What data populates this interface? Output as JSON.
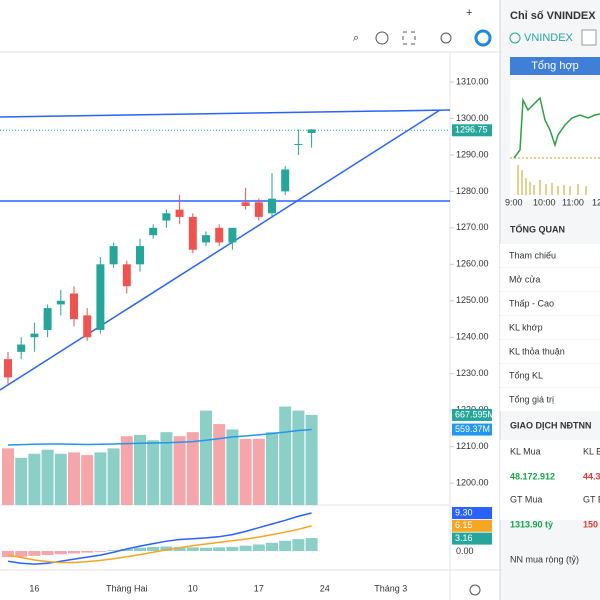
{
  "chart_data": {
    "type": "candlestick",
    "open": [
      1234,
      1236,
      1240,
      1242,
      1249,
      1252,
      1246,
      1242,
      1260,
      1260,
      1260,
      1268,
      1272,
      1275,
      1273,
      1266,
      1270,
      1266,
      1277,
      1277,
      1274,
      1280,
      1293,
      1296
    ],
    "close": [
      1229,
      1238,
      1241,
      1248,
      1250,
      1245,
      1240,
      1260,
      1265,
      1254,
      1265,
      1270,
      1274,
      1273,
      1264,
      1268,
      1266,
      1270,
      1276,
      1273,
      1278,
      1286,
      1293,
      1297
    ],
    "high": [
      1236,
      1240,
      1244,
      1249,
      1253,
      1254,
      1248,
      1262,
      1266,
      1261,
      1267,
      1271,
      1275,
      1279,
      1274,
      1269,
      1271,
      1270,
      1281,
      1278,
      1285,
      1287,
      1297,
      1297
    ],
    "low": [
      1227,
      1234,
      1236,
      1240,
      1246,
      1243,
      1239,
      1241,
      1259,
      1252,
      1258,
      1267,
      1270,
      1271,
      1263,
      1265,
      1265,
      1264,
      1275,
      1272,
      1273,
      1279,
      1290,
      1292
    ],
    "ylim": [
      1194,
      1317.4
    ],
    "yticks": [
      {
        "value": 1310,
        "label": "1310.00"
      },
      {
        "value": 1300,
        "label": "1300.00"
      },
      {
        "value": 1290,
        "label": "1290.00"
      },
      {
        "value": 1280,
        "label": "1280.00"
      },
      {
        "value": 1270,
        "label": "1270.00"
      },
      {
        "value": 1260,
        "label": "1260.00"
      },
      {
        "value": 1250,
        "label": "1250.00"
      },
      {
        "value": 1240,
        "label": "1240.00"
      },
      {
        "value": 1230,
        "label": "1230.00"
      },
      {
        "value": 1220,
        "label": "1220.00"
      },
      {
        "value": 1210,
        "label": "1210.00"
      },
      {
        "value": 1200,
        "label": "1200.00"
      }
    ],
    "last_price": 1296.75,
    "xticks": [
      {
        "value": 2,
        "label": "16"
      },
      {
        "value": 9,
        "label": "Tháng Hai"
      },
      {
        "value": 14,
        "label": "10"
      },
      {
        "value": 19,
        "label": "17"
      },
      {
        "value": 24,
        "label": "24"
      },
      {
        "value": 29,
        "label": "Tháng 3"
      }
    ],
    "up_color": "#26a69a",
    "down_color": "#ef5350",
    "volume": {
      "values": [
        420,
        350,
        380,
        410,
        380,
        390,
        370,
        390,
        420,
        510,
        520,
        480,
        540,
        510,
        540,
        700,
        600,
        560,
        490,
        490,
        540,
        730,
        700,
        667.595
      ],
      "ma": [
        445,
        448,
        450,
        452,
        452,
        450,
        449,
        450,
        452,
        455,
        458,
        460,
        462,
        465,
        470,
        480,
        492,
        505,
        512,
        520,
        530,
        540,
        552,
        559.37
      ],
      "ylim": [
        0,
        1001
      ],
      "last_label": "667.595M",
      "ma_label": "559.37M",
      "up_color": "#8ccfc7",
      "down_color": "#f4a6aa",
      "ma_color": "#2196f3"
    },
    "macd": {
      "histogram": [
        -1.5,
        -1.4,
        -1.2,
        -1,
        -0.8,
        -0.6,
        -0.4,
        -0.2,
        0.2,
        0.5,
        0.8,
        1,
        1.1,
        1,
        0.9,
        0.8,
        0.9,
        1,
        1.3,
        1.6,
        2,
        2.5,
        2.9,
        3.16
      ],
      "macd": [
        -2.5,
        -3,
        -3.2,
        -3,
        -2.5,
        -2,
        -1.5,
        -1,
        -0.3,
        0.5,
        1.2,
        1.8,
        2.4,
        2.8,
        3,
        3.2,
        3.5,
        4,
        4.8,
        5.7,
        6.6,
        7.5,
        8.5,
        9.3
      ],
      "signal": [
        -1,
        -1.6,
        -2.2,
        -2.6,
        -2.8,
        -2.8,
        -2.6,
        -2.3,
        -1.9,
        -1.4,
        -0.9,
        -0.3,
        0.3,
        0.8,
        1.3,
        1.7,
        2.1,
        2.5,
        2.9,
        3.4,
        4,
        4.6,
        5.3,
        6.15
      ],
      "ylim": [
        -4.16,
        10.76
      ],
      "labels": [
        {
          "value": 9.3,
          "label": "9.30"
        },
        {
          "value": 6.15,
          "label": "6.15"
        },
        {
          "value": 3.16,
          "label": "3.16"
        },
        {
          "value": 0,
          "label": "0.00"
        }
      ],
      "macd_color": "#2962ff",
      "signal_color": "#f5a623"
    }
  },
  "panel": {
    "title": "Chỉ số VNINDEX",
    "symbol": "VNINDEX",
    "tab": "Tổng hợp",
    "times": [
      "9:00",
      "10:00",
      "11:00",
      "12"
    ],
    "overview_title": "TỔNG QUAN",
    "overview_rows": [
      "Tham chiếu",
      "Mở cửa",
      "Thấp - Cao",
      "KL khớp",
      "KL thỏa thuận",
      "Tổng KL",
      "Tổng giá trị"
    ],
    "foreign_title": "GIAO DỊCH NĐTNN",
    "kl_mua": "KL Mua",
    "kl_ban": "KL B",
    "kl_mua_value": "48.172.912",
    "kl_ban_value": "44.3",
    "gt_mua": "GT Mua",
    "gt_ban": "GT B",
    "gt_mua_value": "1313.90 tỷ",
    "gt_ban_value": "150",
    "net": "NN mua ròng (tỷ)"
  }
}
